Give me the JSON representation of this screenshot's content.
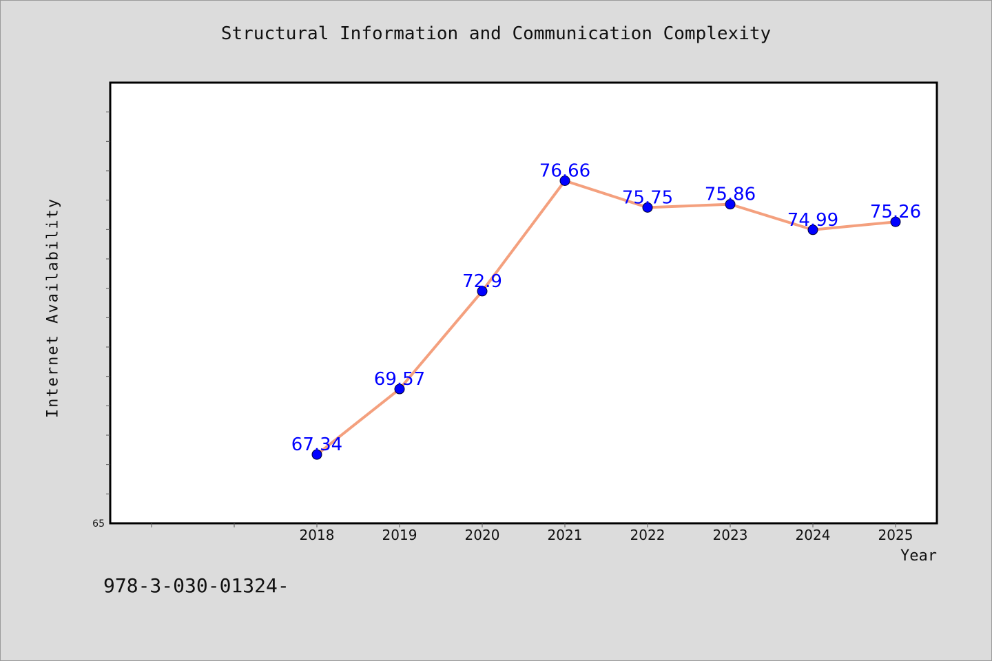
{
  "chart_data": {
    "type": "line",
    "title": "Structural Information and Communication Complexity",
    "xlabel": "Year",
    "ylabel": "Internet Availability",
    "categories": [
      "2018",
      "2019",
      "2020",
      "2021",
      "2022",
      "2023",
      "2024",
      "2025"
    ],
    "series": [
      {
        "values": [
          67.34,
          69.57,
          72.9,
          76.66,
          75.75,
          75.86,
          74.99,
          75.26
        ],
        "data_labels": [
          "67.34",
          "69.57",
          "72.9",
          "76.66",
          "75.75",
          "75.86",
          "74.99",
          "75.26"
        ]
      }
    ],
    "ylim": [
      65,
      80
    ],
    "y_tick_labels": [
      "65"
    ],
    "legend": "none",
    "grid": false,
    "colors": {
      "line": "#f4a07e",
      "marker": "#0000ff",
      "data_label": "#0000ff",
      "plot_background": "#ffffff",
      "page_background": "#dcdcdc"
    }
  },
  "footer": {
    "code": "978-3-030-01324-"
  }
}
